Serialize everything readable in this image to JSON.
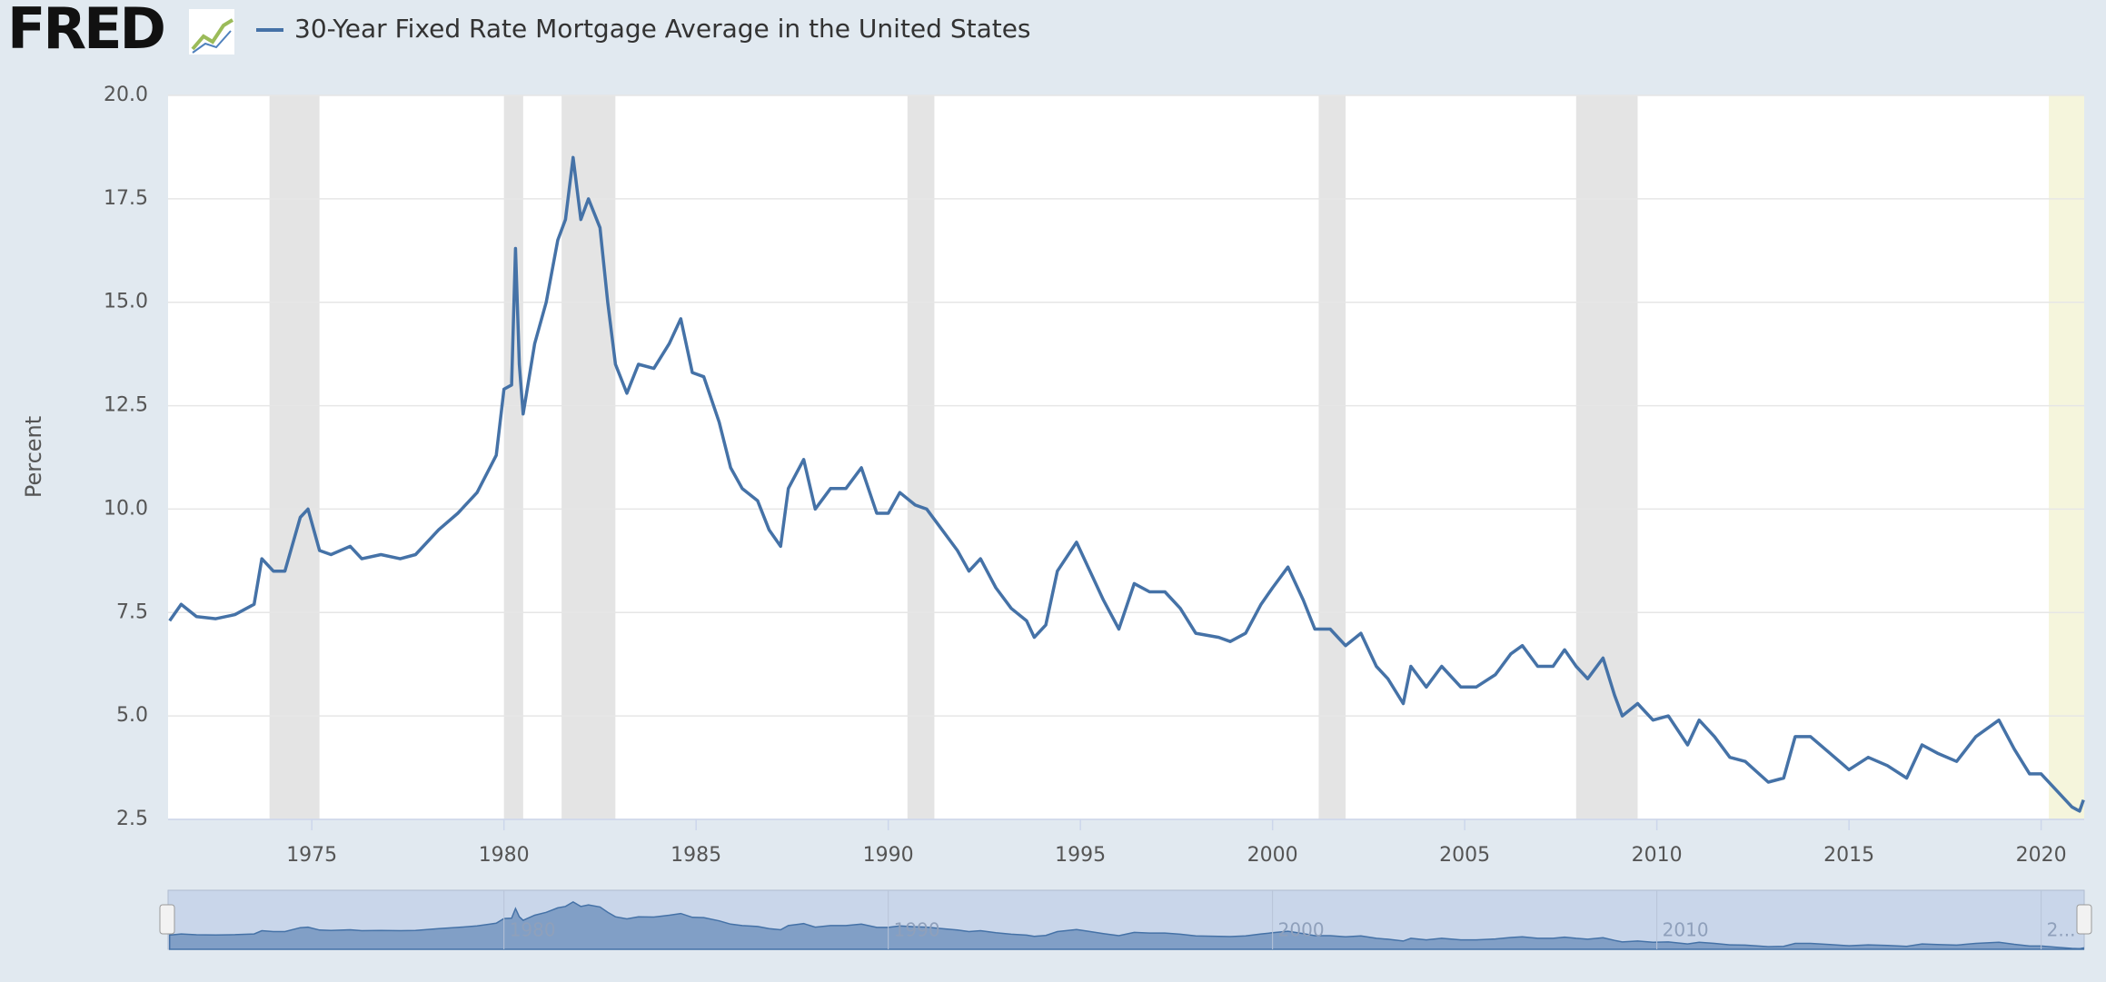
{
  "logo": "FRED",
  "chart_data": {
    "type": "line",
    "y_label": "Percent",
    "xlim": [
      1971.26,
      2021.12
    ],
    "xticks": [
      1975,
      1980,
      1985,
      1990,
      1995,
      2000,
      2005,
      2010,
      2015,
      2020
    ],
    "ylim": [
      2.5,
      20
    ],
    "yticks": [
      2.5,
      {
        "value": 5,
        "label": "5.0"
      },
      7.5,
      {
        "value": 10,
        "label": "10.0"
      },
      12.5,
      {
        "value": 15,
        "label": "15.0"
      },
      17.5,
      {
        "value": 20,
        "label": "20.0"
      }
    ],
    "grid": true,
    "recessions": [
      [
        1973.9,
        1975.2
      ],
      [
        1980.0,
        1980.5
      ],
      [
        1981.5,
        1982.9
      ],
      [
        1990.5,
        1991.2
      ],
      [
        2001.2,
        2001.9
      ],
      [
        2007.9,
        2009.5
      ]
    ],
    "highlight": [
      2020.2,
      2021.12
    ],
    "navigator_xticks": [
      1980,
      1990,
      2000,
      2010,
      {
        "value": 2020,
        "label": "2..."
      }
    ],
    "x": [
      1971.3,
      1971.6,
      1972.0,
      1972.5,
      1973.0,
      1973.5,
      1973.7,
      1974.0,
      1974.3,
      1974.7,
      1974.9,
      1975.2,
      1975.5,
      1976.0,
      1976.3,
      1976.8,
      1977.3,
      1977.7,
      1978.3,
      1978.8,
      1979.3,
      1979.8,
      1980.0,
      1980.2,
      1980.3,
      1980.4,
      1980.5,
      1980.8,
      1981.1,
      1981.4,
      1981.6,
      1981.8,
      1982.0,
      1982.2,
      1982.5,
      1982.7,
      1982.9,
      1983.2,
      1983.5,
      1983.9,
      1984.3,
      1984.6,
      1984.9,
      1985.2,
      1985.6,
      1985.9,
      1986.2,
      1986.6,
      1986.9,
      1987.2,
      1987.4,
      1987.8,
      1988.1,
      1988.5,
      1988.9,
      1989.3,
      1989.7,
      1990.0,
      1990.3,
      1990.7,
      1991.0,
      1991.4,
      1991.8,
      1992.1,
      1992.4,
      1992.8,
      1993.2,
      1993.6,
      1993.8,
      1994.1,
      1994.4,
      1994.9,
      1995.2,
      1995.6,
      1996.0,
      1996.4,
      1996.8,
      1997.2,
      1997.6,
      1998.0,
      1998.6,
      1998.9,
      1999.3,
      1999.7,
      2000.0,
      2000.4,
      2000.8,
      2001.1,
      2001.5,
      2001.9,
      2002.3,
      2002.7,
      2003.0,
      2003.4,
      2003.6,
      2004.0,
      2004.4,
      2004.9,
      2005.3,
      2005.8,
      2006.2,
      2006.5,
      2006.9,
      2007.3,
      2007.6,
      2007.9,
      2008.2,
      2008.6,
      2008.9,
      2009.1,
      2009.5,
      2009.9,
      2010.3,
      2010.8,
      2011.1,
      2011.5,
      2011.9,
      2012.3,
      2012.9,
      2013.3,
      2013.6,
      2014.0,
      2014.5,
      2015.0,
      2015.5,
      2016.0,
      2016.5,
      2016.9,
      2017.3,
      2017.8,
      2018.3,
      2018.9,
      2019.3,
      2019.7,
      2020.0,
      2020.4,
      2020.8,
      2021.0,
      2021.1
    ],
    "series": [
      {
        "name": "30-Year Fixed Rate Mortgage Average in the United States",
        "color": "#4572a7",
        "values": [
          7.3,
          7.7,
          7.4,
          7.35,
          7.45,
          7.7,
          8.8,
          8.5,
          8.5,
          9.8,
          10.0,
          9.0,
          8.9,
          9.1,
          8.8,
          8.9,
          8.8,
          8.9,
          9.5,
          9.9,
          10.4,
          11.3,
          12.9,
          13.0,
          16.3,
          13.5,
          12.3,
          14.0,
          15.0,
          16.5,
          17.0,
          18.5,
          17.0,
          17.5,
          16.8,
          15.0,
          13.5,
          12.8,
          13.5,
          13.4,
          14.0,
          14.6,
          13.3,
          13.2,
          12.1,
          11.0,
          10.5,
          10.2,
          9.5,
          9.1,
          10.5,
          11.2,
          10.0,
          10.5,
          10.5,
          11.0,
          9.9,
          9.9,
          10.4,
          10.1,
          10.0,
          9.5,
          9.0,
          8.5,
          8.8,
          8.1,
          7.6,
          7.3,
          6.9,
          7.2,
          8.5,
          9.2,
          8.6,
          7.8,
          7.1,
          8.2,
          8.0,
          8.0,
          7.6,
          7.0,
          6.9,
          6.8,
          7.0,
          7.7,
          8.1,
          8.6,
          7.8,
          7.1,
          7.1,
          6.7,
          7.0,
          6.2,
          5.9,
          5.3,
          6.2,
          5.7,
          6.2,
          5.7,
          5.7,
          6.0,
          6.5,
          6.7,
          6.2,
          6.2,
          6.6,
          6.2,
          5.9,
          6.4,
          5.5,
          5.0,
          5.3,
          4.9,
          5.0,
          4.3,
          4.9,
          4.5,
          4.0,
          3.9,
          3.4,
          3.5,
          4.5,
          4.5,
          4.1,
          3.7,
          4.0,
          3.8,
          3.5,
          4.3,
          4.1,
          3.9,
          4.5,
          4.9,
          4.2,
          3.6,
          3.6,
          3.2,
          2.8,
          2.7,
          2.97
        ]
      }
    ]
  }
}
